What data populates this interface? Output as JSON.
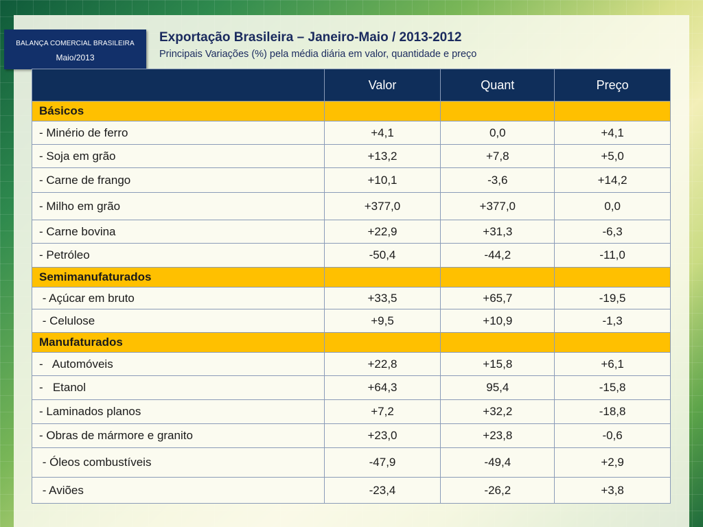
{
  "badge": {
    "line1": "BALANÇA COMERCIAL BRASILEIRA",
    "line2": "Maio/2013"
  },
  "header": {
    "title": "Exportação Brasileira – Janeiro-Maio / 2013-2012",
    "subtitle": "Principais Variações (%) pela média diária em valor, quantidade e preço"
  },
  "table": {
    "columns": [
      "",
      "Valor",
      "Quant",
      "Preço"
    ],
    "sections": [
      {
        "name": "Básicos",
        "rows": [
          {
            "label": "- Minério de ferro",
            "valor": "+4,1",
            "quant": "0,0",
            "preco": "+4,1"
          },
          {
            "label": "- Soja em grão",
            "valor": "+13,2",
            "quant": "+7,8",
            "preco": "+5,0"
          },
          {
            "label": "- Carne de frango",
            "valor": "+10,1",
            "quant": "-3,6",
            "preco": "+14,2"
          },
          {
            "label": "- Milho em grão",
            "valor": "+377,0",
            "quant": "+377,0",
            "preco": "0,0"
          },
          {
            "label": "- Carne bovina",
            "valor": "+22,9",
            "quant": "+31,3",
            "preco": "-6,3"
          },
          {
            "label": "- Petróleo",
            "valor": "-50,4",
            "quant": "-44,2",
            "preco": "-11,0"
          }
        ]
      },
      {
        "name": "Semimanufaturados",
        "rows": [
          {
            "label": " - Açúcar em bruto",
            "valor": "+33,5",
            "quant": "+65,7",
            "preco": "-19,5"
          },
          {
            "label": " - Celulose",
            "valor": "+9,5",
            "quant": "+10,9",
            "preco": "-1,3"
          }
        ]
      },
      {
        "name": "Manufaturados",
        "rows": [
          {
            "label": "-   Automóveis",
            "valor": "+22,8",
            "quant": "+15,8",
            "preco": "+6,1"
          },
          {
            "label": "-   Etanol",
            "valor": "+64,3",
            "quant": "95,4",
            "preco": "-15,8"
          },
          {
            "label": "- Laminados planos",
            "valor": "+7,2",
            "quant": "+32,2",
            "preco": "-18,8"
          },
          {
            "label": "- Obras de mármore e granito",
            "valor": "+23,0",
            "quant": "+23,8",
            "preco": "-0,6"
          },
          {
            "label": " - Óleos combustíveis",
            "valor": "-47,9",
            "quant": "-49,4",
            "preco": "+2,9"
          },
          {
            "label": " - Aviões",
            "valor": "-23,4",
            "quant": "-26,2",
            "preco": "+3,8"
          }
        ]
      }
    ]
  }
}
